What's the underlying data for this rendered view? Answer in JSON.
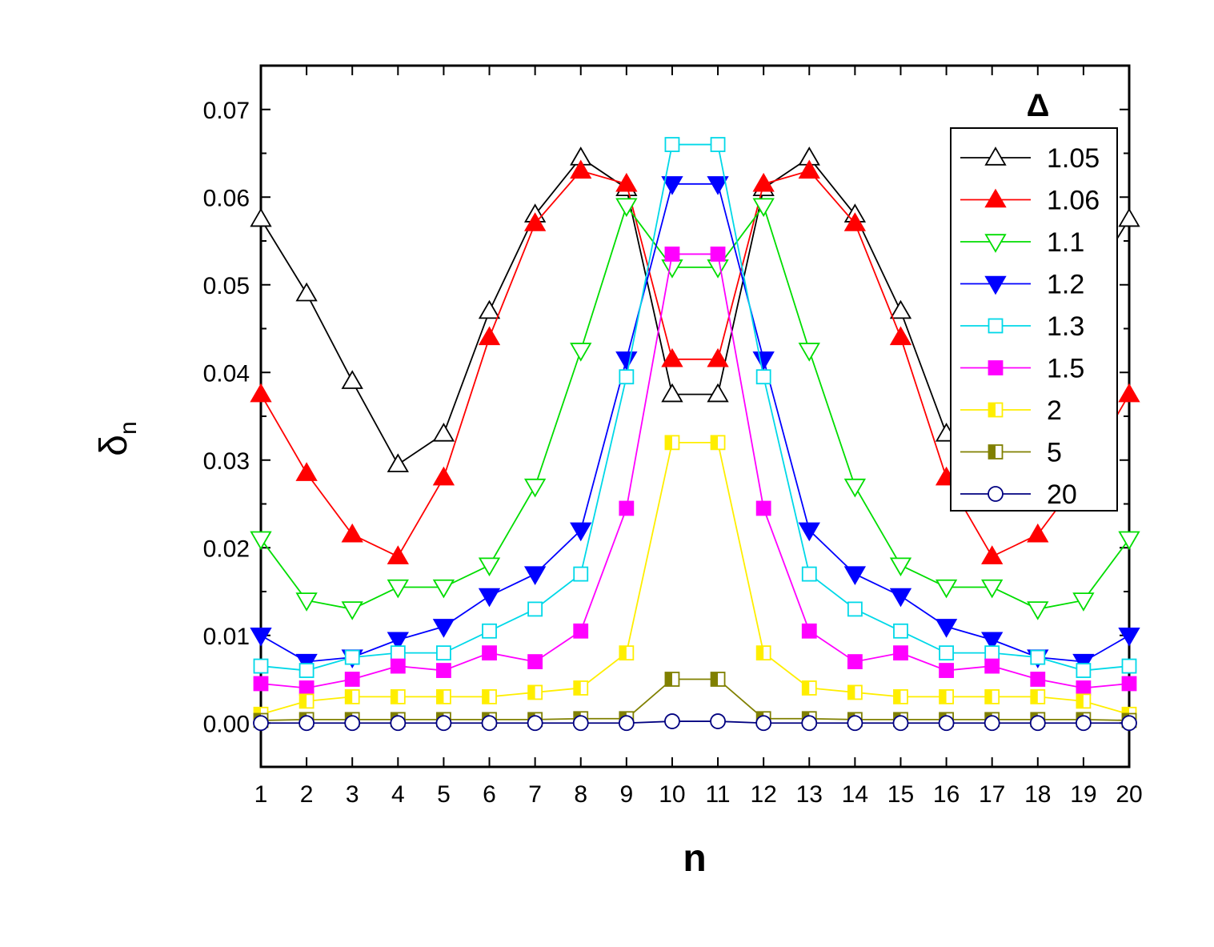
{
  "chart_data": {
    "type": "line",
    "xlabel": "n",
    "ylabel_main": "δ",
    "ylabel_sub": "n",
    "legend_title": "Δ",
    "legend_position": "top-right",
    "grid": false,
    "xlim": [
      1,
      20
    ],
    "ylim": [
      -0.005,
      0.075
    ],
    "x": [
      1,
      2,
      3,
      4,
      5,
      6,
      7,
      8,
      9,
      10,
      11,
      12,
      13,
      14,
      15,
      16,
      17,
      18,
      19,
      20
    ],
    "x_tick_labels": [
      "1",
      "2",
      "3",
      "4",
      "5",
      "6",
      "7",
      "8",
      "9",
      "10",
      "11",
      "12",
      "13",
      "14",
      "15",
      "16",
      "17",
      "18",
      "19",
      "20"
    ],
    "y_ticks": [
      0.0,
      0.01,
      0.02,
      0.03,
      0.04,
      0.05,
      0.06,
      0.07
    ],
    "y_tick_labels": [
      "0.00",
      "0.01",
      "0.02",
      "0.03",
      "0.04",
      "0.05",
      "0.06",
      "0.07"
    ],
    "series": [
      {
        "name": "1.05",
        "color": "#000000",
        "marker": "triangle-up-open",
        "values": [
          0.0575,
          0.049,
          0.039,
          0.0295,
          0.033,
          0.047,
          0.058,
          0.0645,
          0.061,
          0.0375,
          0.0375,
          0.061,
          0.0645,
          0.058,
          0.047,
          0.033,
          0.0295,
          0.039,
          0.049,
          0.0575
        ]
      },
      {
        "name": "1.06",
        "color": "#ff0000",
        "marker": "triangle-up-filled",
        "values": [
          0.0375,
          0.0285,
          0.0215,
          0.019,
          0.028,
          0.044,
          0.057,
          0.063,
          0.0615,
          0.0415,
          0.0415,
          0.0615,
          0.063,
          0.057,
          0.044,
          0.028,
          0.019,
          0.0215,
          0.0285,
          0.0375
        ]
      },
      {
        "name": "1.1",
        "color": "#00dd00",
        "marker": "triangle-down-open",
        "values": [
          0.021,
          0.014,
          0.013,
          0.0155,
          0.0155,
          0.018,
          0.027,
          0.0425,
          0.059,
          0.052,
          0.052,
          0.059,
          0.0425,
          0.027,
          0.018,
          0.0155,
          0.0155,
          0.013,
          0.014,
          0.021
        ]
      },
      {
        "name": "1.2",
        "color": "#0000ff",
        "marker": "triangle-down-filled",
        "values": [
          0.01,
          0.007,
          0.0075,
          0.0095,
          0.011,
          0.0145,
          0.017,
          0.022,
          0.0415,
          0.0615,
          0.0615,
          0.0415,
          0.022,
          0.017,
          0.0145,
          0.011,
          0.0095,
          0.0075,
          0.007,
          0.01
        ]
      },
      {
        "name": "1.3",
        "color": "#00d8e8",
        "marker": "square-open",
        "values": [
          0.0065,
          0.006,
          0.0075,
          0.008,
          0.008,
          0.0105,
          0.013,
          0.017,
          0.0395,
          0.066,
          0.066,
          0.0395,
          0.017,
          0.013,
          0.0105,
          0.008,
          0.008,
          0.0075,
          0.006,
          0.0065
        ]
      },
      {
        "name": "1.5",
        "color": "#ff00ff",
        "marker": "square-filled",
        "values": [
          0.0045,
          0.004,
          0.005,
          0.0065,
          0.006,
          0.008,
          0.007,
          0.0105,
          0.0245,
          0.0535,
          0.0535,
          0.0245,
          0.0105,
          0.007,
          0.008,
          0.006,
          0.0065,
          0.005,
          0.004,
          0.0045
        ]
      },
      {
        "name": "2",
        "color": "#ffee00",
        "marker": "square-half",
        "values": [
          0.001,
          0.0025,
          0.003,
          0.003,
          0.003,
          0.003,
          0.0035,
          0.004,
          0.008,
          0.032,
          0.032,
          0.008,
          0.004,
          0.0035,
          0.003,
          0.003,
          0.003,
          0.003,
          0.0025,
          0.001
        ]
      },
      {
        "name": "5",
        "color": "#808000",
        "marker": "square-half",
        "values": [
          0.0003,
          0.0004,
          0.0004,
          0.0004,
          0.0004,
          0.0004,
          0.0004,
          0.0005,
          0.0005,
          0.005,
          0.005,
          0.0005,
          0.0005,
          0.0004,
          0.0004,
          0.0004,
          0.0004,
          0.0004,
          0.0004,
          0.0003
        ]
      },
      {
        "name": "20",
        "color": "#000080",
        "marker": "circle-open",
        "values": [
          0.0,
          0.0,
          0.0,
          0.0,
          0.0,
          0.0,
          0.0,
          0.0,
          0.0,
          0.0002,
          0.0002,
          0.0,
          0.0,
          0.0,
          0.0,
          0.0,
          0.0,
          0.0,
          0.0,
          0.0
        ]
      }
    ]
  }
}
